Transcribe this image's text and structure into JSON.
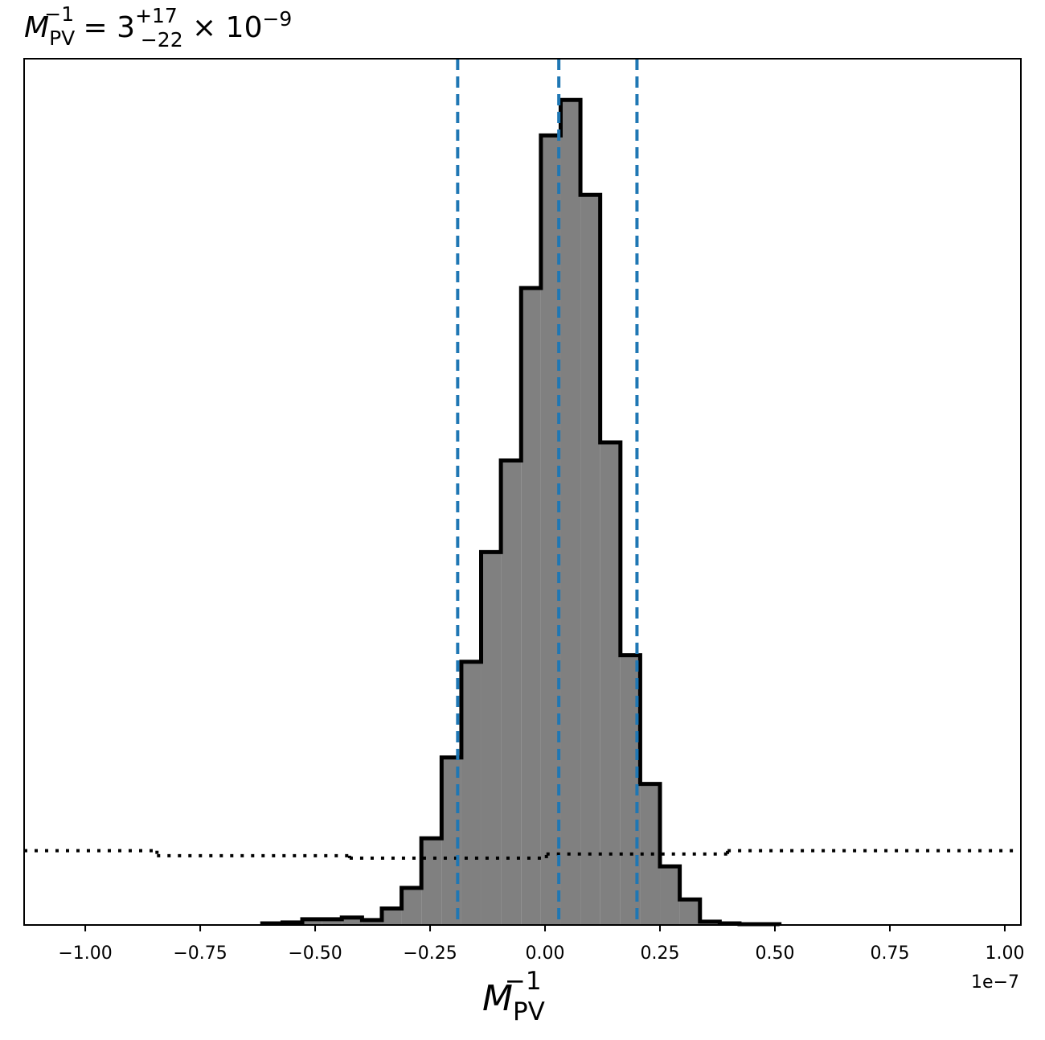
{
  "chart_data": {
    "type": "histogram",
    "title": {
      "base": "M",
      "sub": "PV",
      "sup": "−1",
      "eq": " = 3",
      "plus": "+17",
      "minus": "−22",
      "tail": " × 10",
      "exp": "−9"
    },
    "xlabel": {
      "base": "M",
      "sub": "PV",
      "sup": "−1"
    },
    "x_offset_label": "1e−7",
    "bins": [
      -0.615,
      -0.571,
      -0.528,
      -0.485,
      -0.442,
      -0.398,
      -0.355,
      -0.312,
      -0.269,
      -0.225,
      -0.182,
      -0.139,
      -0.096,
      -0.052,
      -0.009,
      0.034,
      0.077,
      0.12,
      0.164,
      0.207,
      0.25,
      0.293,
      0.337,
      0.38,
      0.423,
      0.466,
      0.51
    ],
    "values": [
      0.002,
      0.003,
      0.007,
      0.007,
      0.009,
      0.006,
      0.02,
      0.045,
      0.105,
      0.203,
      0.319,
      0.452,
      0.563,
      0.772,
      0.957,
      1.0,
      0.885,
      0.585,
      0.327,
      0.171,
      0.071,
      0.031,
      0.004,
      0.002,
      0.001,
      0.001
    ],
    "color": "#808080",
    "edge_color": "#000000",
    "prior": {
      "bins": [
        -1.133,
        -0.844,
        -0.425,
        0.003,
        0.397,
        1.035
      ],
      "values": [
        0.09,
        0.084,
        0.081,
        0.086,
        0.09
      ],
      "color": "#000000"
    },
    "quantiles": {
      "values": [
        -0.19,
        0.03,
        0.2
      ],
      "color": "#1f77b4"
    },
    "xlim": [
      -1.133,
      1.035
    ],
    "ylim": [
      0,
      1.05
    ],
    "xticks": [
      {
        "value": -1.0,
        "label": "−1.00"
      },
      {
        "value": -0.75,
        "label": "−0.75"
      },
      {
        "value": -0.5,
        "label": "−0.50"
      },
      {
        "value": -0.25,
        "label": "−0.25"
      },
      {
        "value": 0,
        "label": "0.00"
      },
      {
        "value": 0.25,
        "label": "0.25"
      },
      {
        "value": 0.5,
        "label": "0.50"
      },
      {
        "value": 0.75,
        "label": "0.75"
      },
      {
        "value": 1.0,
        "label": "1.00"
      }
    ]
  }
}
